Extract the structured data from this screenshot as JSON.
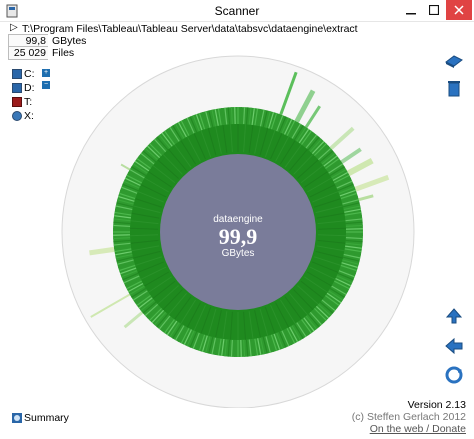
{
  "window": {
    "title": "Scanner"
  },
  "path": {
    "text": "T:\\Program Files\\Tableau\\Tableau Server\\data\\tabsvc\\dataengine\\extract"
  },
  "stats": {
    "size_value": "99,8",
    "size_label": "GBytes",
    "files_value": "25 029",
    "files_label": "Files"
  },
  "drives": [
    {
      "label": "C:",
      "color": "#2a66a8",
      "expand": "+"
    },
    {
      "label": "D:",
      "color": "#2a66a8",
      "expand": "−"
    },
    {
      "label": "T:",
      "color": "#9b1b1b"
    },
    {
      "label": "X:",
      "color": "#3a78b8"
    }
  ],
  "center": {
    "name": "dataengine",
    "value": "99,9",
    "unit": "GBytes"
  },
  "footer": {
    "version": "Version 2.13",
    "copyright": "(c) Steffen Gerlach 2012",
    "link": "On the web / Donate"
  },
  "summary": {
    "label": "Summary"
  },
  "colors": {
    "ring_dark": "#1f8a1f",
    "ring_light": "#3fa83f",
    "center": "#7a7c9a",
    "outer": "#f7f7f7"
  }
}
